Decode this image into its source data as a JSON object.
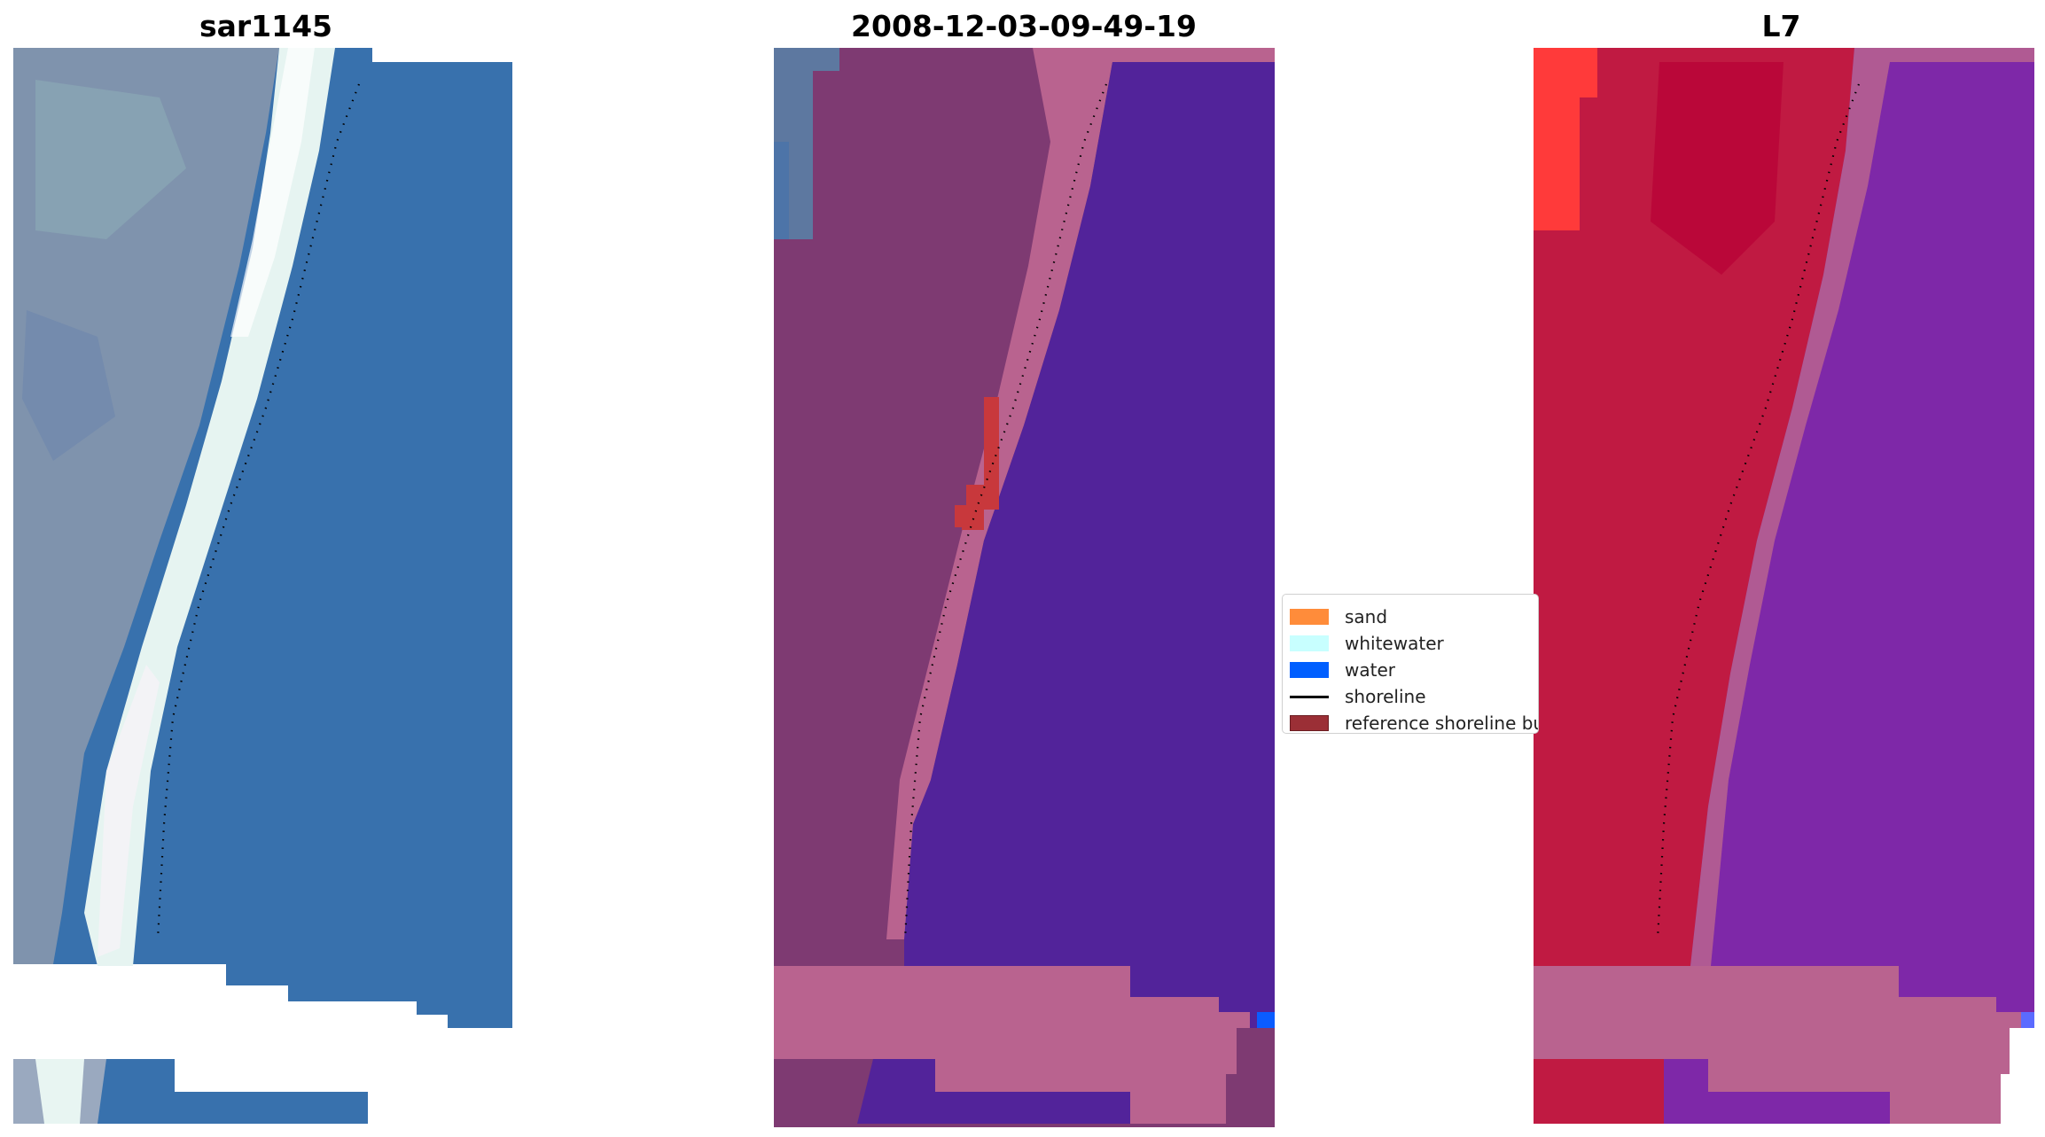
{
  "panels": [
    {
      "title": "sar1145"
    },
    {
      "title": "2008-12-03-09-49-19"
    },
    {
      "title": "L7"
    }
  ],
  "legend": {
    "items": [
      {
        "label": "sand",
        "color": "#ff8c3a"
      },
      {
        "label": "whitewater",
        "color": "#c8ffff"
      },
      {
        "label": "water",
        "color": "#005fff"
      },
      {
        "label": "shoreline",
        "color": "#000000"
      },
      {
        "label": "reference shoreline buffer",
        "color": "#9b2f36"
      }
    ]
  },
  "colors": {
    "rgb_water": "#3871ad",
    "rgb_land": "#7f93ad",
    "rgb_whitewater": "#e8f5f2",
    "false_color_land": "#7e3a72",
    "false_color_beach": "#b9638f",
    "false_color_water": "#52239a",
    "l7_land": "#c01a42",
    "l7_water": "#7e28a8",
    "water_class": "#0a5cff",
    "buffer": "#c8383c"
  }
}
